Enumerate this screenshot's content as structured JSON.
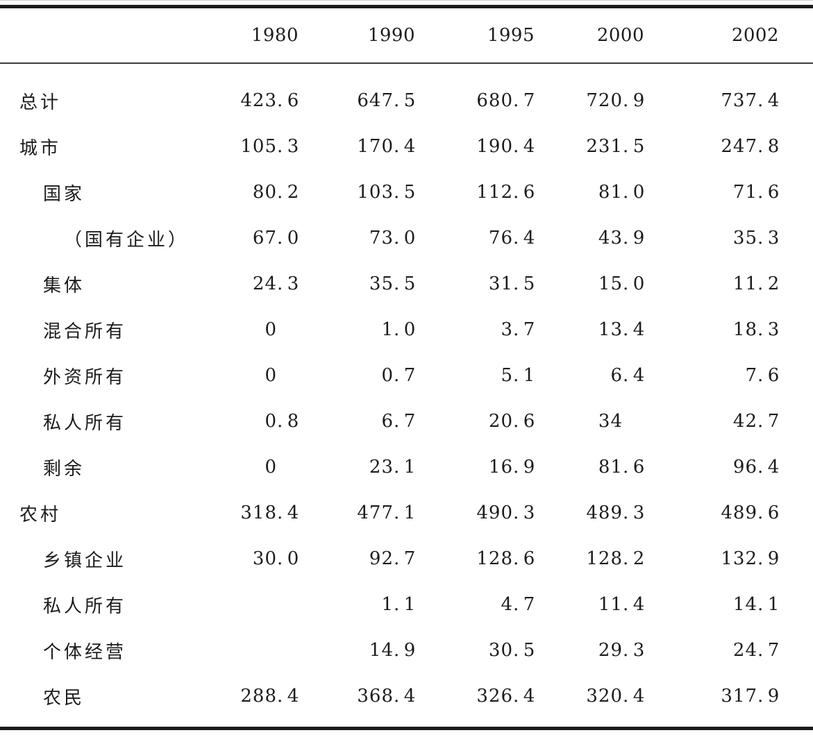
{
  "chart_data": {
    "type": "table",
    "columns": [
      "1980",
      "1990",
      "1995",
      "2000",
      "2002"
    ],
    "rows": [
      {
        "label": "总计",
        "indent": 0,
        "values": [
          "423.6",
          "647.5",
          "680.7",
          "720.9",
          "737.4"
        ]
      },
      {
        "label": "城市",
        "indent": 0,
        "values": [
          "105.3",
          "170.4",
          "190.4",
          "231.5",
          "247.8"
        ]
      },
      {
        "label": "国家",
        "indent": 1,
        "values": [
          "80.2",
          "103.5",
          "112.6",
          "81.0",
          "71.6"
        ]
      },
      {
        "label": "（国有企业）",
        "indent": 2,
        "values": [
          "67.0",
          "73.0",
          "76.4",
          "43.9",
          "35.3"
        ]
      },
      {
        "label": "集体",
        "indent": 1,
        "values": [
          "24.3",
          "35.5",
          "31.5",
          "15.0",
          "11.2"
        ]
      },
      {
        "label": "混合所有",
        "indent": 1,
        "values": [
          "0",
          "1.0",
          "3.7",
          "13.4",
          "18.3"
        ]
      },
      {
        "label": "外资所有",
        "indent": 1,
        "values": [
          "0",
          "0.7",
          "5.1",
          "6.4",
          "7.6"
        ]
      },
      {
        "label": "私人所有",
        "indent": 1,
        "values": [
          "0.8",
          "6.7",
          "20.6",
          "34",
          "42.7"
        ]
      },
      {
        "label": "剩余",
        "indent": 1,
        "values": [
          "0",
          "23.1",
          "16.9",
          "81.6",
          "96.4"
        ]
      },
      {
        "label": "农村",
        "indent": 0,
        "values": [
          "318.4",
          "477.1",
          "490.3",
          "489.3",
          "489.6"
        ]
      },
      {
        "label": "乡镇企业",
        "indent": 1,
        "values": [
          "30.0",
          "92.7",
          "128.6",
          "128.2",
          "132.9"
        ]
      },
      {
        "label": "私人所有",
        "indent": 1,
        "values": [
          "",
          "1.1",
          "4.7",
          "11.4",
          "14.1"
        ]
      },
      {
        "label": "个体经营",
        "indent": 1,
        "values": [
          "",
          "14.9",
          "30.5",
          "29.3",
          "24.7"
        ]
      },
      {
        "label": "农民",
        "indent": 1,
        "values": [
          "288.4",
          "368.4",
          "326.4",
          "320.4",
          "317.9"
        ]
      }
    ],
    "layout": {
      "number_alignment": "decimal",
      "grid": "off",
      "top_rule": "thick",
      "header_rule": "thin",
      "bottom_rule": "thick"
    },
    "colors": {
      "text": "#1c1c1c",
      "rule_thick": "#1b1b1b",
      "rule_thin": "#3f3f3f",
      "background": "#ffffff"
    }
  }
}
